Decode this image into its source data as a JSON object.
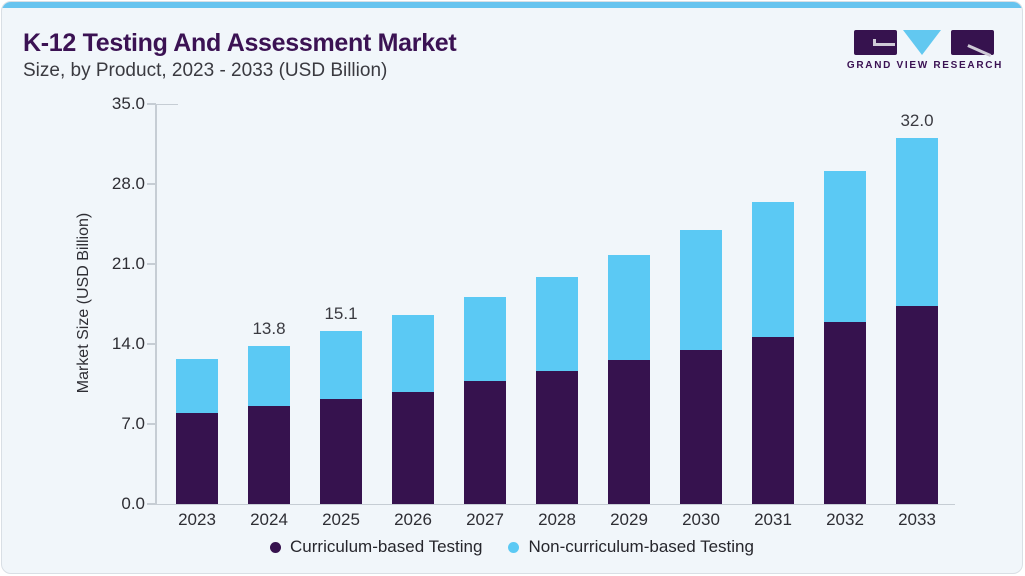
{
  "header": {
    "title": "K-12 Testing And Assessment Market",
    "subtitle": "Size, by Product, 2023 - 2033 (USD Billion)"
  },
  "logo": {
    "name": "GRAND VIEW RESEARCH"
  },
  "style": {
    "accent_strip": "#67C4EF",
    "title_color": "#3B1253",
    "curriculum_color": "#36124E",
    "non_curriculum_color": "#5BC9F4",
    "background": "#F1F6FA"
  },
  "chart_data": {
    "type": "bar",
    "stacked": true,
    "title": "K-12 Testing And Assessment Market Size, by Product, 2023 - 2033 (USD Billion)",
    "categories": [
      "2023",
      "2024",
      "2025",
      "2026",
      "2027",
      "2028",
      "2029",
      "2030",
      "2031",
      "2032",
      "2033"
    ],
    "series": [
      {
        "name": "Curriculum-based Testing",
        "color": "#36124E",
        "values": [
          8.0,
          8.6,
          9.2,
          9.8,
          10.8,
          11.6,
          12.6,
          13.5,
          14.6,
          15.9,
          17.3
        ]
      },
      {
        "name": "Non-curriculum-based Testing",
        "color": "#5BC9F4",
        "values": [
          4.7,
          5.2,
          5.9,
          6.7,
          7.3,
          8.3,
          9.2,
          10.5,
          11.8,
          13.2,
          14.7
        ]
      }
    ],
    "totals": [
      12.7,
      13.8,
      15.1,
      16.5,
      18.1,
      19.9,
      21.8,
      24.0,
      26.4,
      29.1,
      32.0
    ],
    "data_labels": [
      "",
      "13.8",
      "15.1",
      "",
      "",
      "",
      "",
      "",
      "",
      "",
      "32.0"
    ],
    "ylabel": "Market Size (USD Billion)",
    "xlabel": "",
    "ylim": [
      0,
      35
    ],
    "yticks": [
      0,
      7,
      14,
      21,
      28,
      35
    ],
    "ytick_labels": [
      "0.0",
      "7.0",
      "14.0",
      "21.0",
      "28.0",
      "35.0"
    ],
    "grid": false,
    "legend_position": "bottom"
  }
}
